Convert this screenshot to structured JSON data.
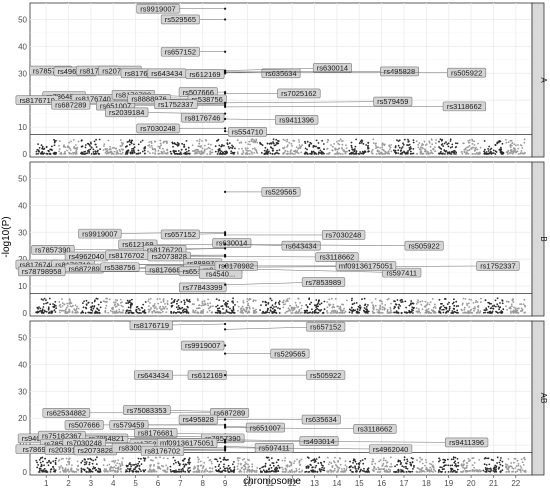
{
  "chart_data": {
    "type": "scatter",
    "subtype": "manhattan",
    "xlabel": "chromosome",
    "ylabel": "-log10(P)",
    "x_categories": [
      "1",
      "2",
      "3",
      "4",
      "5",
      "6",
      "7",
      "8",
      "9",
      "10",
      "11",
      "12",
      "13",
      "14",
      "15",
      "16",
      "17",
      "18",
      "19",
      "20",
      "21",
      "22"
    ],
    "ylim": [
      0,
      55
    ],
    "y_ticks": [
      0,
      10,
      20,
      30,
      40,
      50
    ],
    "point_colors": [
      "#2b2b2b",
      "#9a9a9a"
    ],
    "significance_threshold": 7.3,
    "panels": [
      {
        "strip": "A",
        "snps": [
          {
            "label": "rs9919007",
            "chr": 9,
            "y": 54.0,
            "lx": 6,
            "ly": 54.0
          },
          {
            "label": "rs529565",
            "chr": 9,
            "y": 50.0,
            "lx": 7,
            "ly": 50.0
          },
          {
            "label": "rs657152",
            "chr": 9,
            "y": 38.0,
            "lx": 7,
            "ly": 38.0
          },
          {
            "label": "rs7857390",
            "chr": 9,
            "y": 31.0,
            "lx": 1.2,
            "ly": 31.0
          },
          {
            "label": "rs4962040",
            "chr": 9,
            "y": 30.5,
            "lx": 2.3,
            "ly": 30.7
          },
          {
            "label": "rs8176702",
            "chr": 9,
            "y": 30.5,
            "lx": 3.3,
            "ly": 31.0
          },
          {
            "label": "rs2073828",
            "chr": 9,
            "y": 30.2,
            "lx": 4.3,
            "ly": 31.0
          },
          {
            "label": "rs8176681",
            "chr": 9,
            "y": 30.0,
            "lx": 5.3,
            "ly": 30.0
          },
          {
            "label": "rs643434",
            "chr": 9,
            "y": 30.0,
            "lx": 6.4,
            "ly": 30.0
          },
          {
            "label": "rs612169",
            "chr": 9,
            "y": 30.0,
            "lx": 8.1,
            "ly": 29.7
          },
          {
            "label": "rs635634",
            "chr": 9,
            "y": 30.5,
            "lx": 11.5,
            "ly": 30.0
          },
          {
            "label": "rs630014",
            "chr": 9,
            "y": 31.0,
            "lx": 13.8,
            "ly": 32.0
          },
          {
            "label": "rs495828",
            "chr": 9,
            "y": 30.5,
            "lx": 16.8,
            "ly": 30.7
          },
          {
            "label": "rs505922",
            "chr": 9,
            "y": 30.2,
            "lx": 19.8,
            "ly": 30.2
          },
          {
            "label": "rs7864821",
            "chr": 9,
            "y": 20.5,
            "lx": 1.8,
            "ly": 21.5
          },
          {
            "label": "rs8176719",
            "chr": 9,
            "y": 20.0,
            "lx": 0.6,
            "ly": 20.0
          },
          {
            "label": "rs8176740",
            "chr": 9,
            "y": 20.0,
            "lx": 3.1,
            "ly": 20.5
          },
          {
            "label": "rs8176720",
            "chr": 9,
            "y": 21.0,
            "lx": 4.9,
            "ly": 22.0
          },
          {
            "label": "rs507666",
            "chr": 9,
            "y": 23.0,
            "lx": 7.8,
            "ly": 23.0
          },
          {
            "label": "rs7025162",
            "chr": 9,
            "y": 22.5,
            "lx": 12.3,
            "ly": 22.5
          },
          {
            "label": "rs687289",
            "chr": 9,
            "y": 18.5,
            "lx": 2.1,
            "ly": 18.3
          },
          {
            "label": "rs651007",
            "chr": 9,
            "y": 18.0,
            "lx": 4.1,
            "ly": 18.0
          },
          {
            "label": "rs8888976",
            "chr": 9,
            "y": 20.0,
            "lx": 5.6,
            "ly": 20.5
          },
          {
            "label": "rs538756",
            "chr": 9,
            "y": 20.5,
            "lx": 8.2,
            "ly": 20.3
          },
          {
            "label": "rs1752337",
            "chr": 9,
            "y": 19.0,
            "lx": 6.8,
            "ly": 18.5
          },
          {
            "label": "rs579459",
            "chr": 9,
            "y": 19.0,
            "lx": 16.5,
            "ly": 19.5
          },
          {
            "label": "rs3118662",
            "chr": 9,
            "y": 17.5,
            "lx": 19.7,
            "ly": 17.7
          },
          {
            "label": "rs2039184",
            "chr": 9,
            "y": 15.0,
            "lx": 4.6,
            "ly": 15.5
          },
          {
            "label": "rs8176746",
            "chr": 9,
            "y": 13.0,
            "lx": 8.0,
            "ly": 13.5
          },
          {
            "label": "rs9411396",
            "chr": 9,
            "y": 13.0,
            "lx": 12.2,
            "ly": 12.7
          },
          {
            "label": "rs7030248",
            "chr": 9,
            "y": 9.5,
            "lx": 6.0,
            "ly": 9.5
          },
          {
            "label": "rs554710",
            "chr": 9,
            "y": 8.5,
            "lx": 10.0,
            "ly": 8.2
          }
        ]
      },
      {
        "strip": "B",
        "snps": [
          {
            "label": "rs529565",
            "chr": 9,
            "y": 45.0,
            "lx": 11.5,
            "ly": 45.0
          },
          {
            "label": "rs9919007",
            "chr": 9,
            "y": 30.0,
            "lx": 3.4,
            "ly": 29.5
          },
          {
            "label": "rs657152",
            "chr": 9,
            "y": 29.5,
            "lx": 7.0,
            "ly": 29.2
          },
          {
            "label": "rs7030248",
            "chr": 9,
            "y": 29.0,
            "lx": 14.3,
            "ly": 29.0
          },
          {
            "label": "rs612169",
            "chr": 9,
            "y": 25.5,
            "lx": 5.1,
            "ly": 25.5
          },
          {
            "label": "rs630014",
            "chr": 9,
            "y": 26.0,
            "lx": 9.3,
            "ly": 26.0
          },
          {
            "label": "rs643434",
            "chr": 9,
            "y": 25.5,
            "lx": 12.4,
            "ly": 25.0
          },
          {
            "label": "rs505922",
            "chr": 9,
            "y": 25.5,
            "lx": 17.9,
            "ly": 25.0
          },
          {
            "label": "rs7857390",
            "chr": 9,
            "y": 24.0,
            "lx": 1.3,
            "ly": 23.5
          },
          {
            "label": "rs8176720",
            "chr": 9,
            "y": 24.0,
            "lx": 6.3,
            "ly": 23.5
          },
          {
            "label": "rs4962040",
            "chr": 9,
            "y": 21.5,
            "lx": 2.8,
            "ly": 21.0
          },
          {
            "label": "rs8176702",
            "chr": 9,
            "y": 21.5,
            "lx": 4.6,
            "ly": 21.5
          },
          {
            "label": "rs2073828",
            "chr": 9,
            "y": 21.0,
            "lx": 6.5,
            "ly": 21.0
          },
          {
            "label": "rs3118662",
            "chr": 9,
            "y": 21.0,
            "lx": 14.0,
            "ly": 20.8
          },
          {
            "label": "rs8176740",
            "chr": 9,
            "y": 18.0,
            "lx": 0.6,
            "ly": 18.0
          },
          {
            "label": "rs8176719",
            "chr": 9,
            "y": 18.0,
            "lx": 2.2,
            "ly": 18.0
          },
          {
            "label": "rs888976",
            "chr": 9,
            "y": 18.5,
            "lx": 8.0,
            "ly": 18.5
          },
          {
            "label": "rs687289",
            "chr": 9,
            "y": 16.5,
            "lx": 2.7,
            "ly": 16.5
          },
          {
            "label": "rs538756",
            "chr": 9,
            "y": 16.5,
            "lx": 4.3,
            "ly": 17.0
          },
          {
            "label": "rs8176681",
            "chr": 9,
            "y": 16.5,
            "lx": 6.4,
            "ly": 16.0
          },
          {
            "label": "rs507666",
            "chr": 9,
            "y": 16.0,
            "lx": 8.0,
            "ly": 16.5
          },
          {
            "label": "rs651007",
            "chr": 9,
            "y": 16.0,
            "lx": 7.8,
            "ly": 15.5
          },
          {
            "label": "rs9411396",
            "chr": 9,
            "y": 16.0,
            "lx": 8.8,
            "ly": 16.0
          },
          {
            "label": "rs78798958",
            "chr": 9,
            "y": 15.5,
            "lx": 0.8,
            "ly": 15.5
          },
          {
            "label": "rs1752337",
            "chr": 9,
            "y": 17.0,
            "lx": 21.2,
            "ly": 17.5
          },
          {
            "label": "rs597411",
            "chr": 9,
            "y": 16.5,
            "lx": 16.9,
            "ly": 15.0
          },
          {
            "label": "rs4540...",
            "chr": 9,
            "y": 15.5,
            "lx": 8.8,
            "ly": 14.5
          },
          {
            "label": "rs77843399",
            "chr": 9,
            "y": 10.5,
            "lx": 8.0,
            "ly": 9.5
          },
          {
            "label": "rs7853989",
            "chr": 9,
            "y": 10.5,
            "lx": 13.4,
            "ly": 11.5
          },
          {
            "label": "rs8178982",
            "chr": 9,
            "y": 18.0,
            "lx": 9.5,
            "ly": 17.5
          },
          {
            "label": "mf09136175051",
            "chr": 9,
            "y": 17.5,
            "lx": 15.3,
            "ly": 17.5
          }
        ]
      },
      {
        "strip": "AB",
        "snps": [
          {
            "label": "rs8176719",
            "chr": 9,
            "y": 55.0,
            "lx": 5.7,
            "ly": 54.5
          },
          {
            "label": "rs657152",
            "chr": 9,
            "y": 53.0,
            "lx": 13.5,
            "ly": 54.0
          },
          {
            "label": "rs9919007",
            "chr": 9,
            "y": 47.0,
            "lx": 8.0,
            "ly": 47.0
          },
          {
            "label": "rs529565",
            "chr": 9,
            "y": 44.0,
            "lx": 11.9,
            "ly": 44.0
          },
          {
            "label": "rs643434",
            "chr": 9,
            "y": 36.0,
            "lx": 5.8,
            "ly": 36.0
          },
          {
            "label": "rs612169",
            "chr": 9,
            "y": 36.0,
            "lx": 8.2,
            "ly": 36.0
          },
          {
            "label": "rs505922",
            "chr": 9,
            "y": 36.0,
            "lx": 13.5,
            "ly": 36.0
          },
          {
            "label": "rs62534882",
            "chr": 9,
            "y": 22.0,
            "lx": 1.9,
            "ly": 22.0
          },
          {
            "label": "rs75083353",
            "chr": 9,
            "y": 22.5,
            "lx": 5.5,
            "ly": 23.0
          },
          {
            "label": "rs687289",
            "chr": 9,
            "y": 22.0,
            "lx": 9.2,
            "ly": 22.0
          },
          {
            "label": "rs495828",
            "chr": 9,
            "y": 19.5,
            "lx": 7.8,
            "ly": 19.5
          },
          {
            "label": "rs635634",
            "chr": 9,
            "y": 19.5,
            "lx": 13.3,
            "ly": 19.5
          },
          {
            "label": "rs507666",
            "chr": 9,
            "y": 17.5,
            "lx": 2.7,
            "ly": 17.5
          },
          {
            "label": "rs579459",
            "chr": 9,
            "y": 17.5,
            "lx": 4.7,
            "ly": 17.5
          },
          {
            "label": "rs651007",
            "chr": 9,
            "y": 17.0,
            "lx": 10.8,
            "ly": 16.5
          },
          {
            "label": "rs3118662",
            "chr": 9,
            "y": 16.5,
            "lx": 15.7,
            "ly": 16.0
          },
          {
            "label": "rs9407298",
            "chr": 9,
            "y": 12.5,
            "lx": 0.7,
            "ly": 12.5
          },
          {
            "label": "rs7864821",
            "chr": 9,
            "y": 12.5,
            "lx": 3.7,
            "ly": 12.5
          },
          {
            "label": "rs8176681",
            "chr": 9,
            "y": 14.0,
            "lx": 5.9,
            "ly": 14.5
          },
          {
            "label": "rs75182367",
            "chr": 9,
            "y": 13.0,
            "lx": 1.7,
            "ly": 13.5
          },
          {
            "label": "rs7857390",
            "chr": 9,
            "y": 12.0,
            "lx": 8.9,
            "ly": 12.5
          },
          {
            "label": "rs493014",
            "chr": 9,
            "y": 12.0,
            "lx": 13.2,
            "ly": 11.5
          },
          {
            "label": "rs9411396",
            "chr": 9,
            "y": 11.5,
            "lx": 19.8,
            "ly": 11.0
          },
          {
            "label": "rs7853989",
            "chr": 9,
            "y": 11.0,
            "lx": 1.7,
            "ly": 10.5
          },
          {
            "label": "rs7030248",
            "chr": 9,
            "y": 11.0,
            "lx": 2.7,
            "ly": 10.8
          },
          {
            "label": "rs1752337",
            "chr": 9,
            "y": 11.0,
            "lx": 5.7,
            "ly": 10.5
          },
          {
            "label": "mf09136175051",
            "chr": 9,
            "y": 11.0,
            "lx": 7.3,
            "ly": 10.8
          },
          {
            "label": "rs597411",
            "chr": 9,
            "y": 9.5,
            "lx": 11.2,
            "ly": 9.0
          },
          {
            "label": "rs4962040",
            "chr": 9,
            "y": 9.0,
            "lx": 16.4,
            "ly": 8.5
          },
          {
            "label": "rs7869...",
            "chr": 9,
            "y": 8.5,
            "lx": 0.6,
            "ly": 8.5
          },
          {
            "label": "rs2039184",
            "chr": 9,
            "y": 8.5,
            "lx": 1.9,
            "ly": 8.2
          },
          {
            "label": "rs2073828",
            "chr": 9,
            "y": 8.5,
            "lx": 3.2,
            "ly": 8.0
          },
          {
            "label": "rs8300...",
            "chr": 9,
            "y": 9.0,
            "lx": 4.9,
            "ly": 9.0
          },
          {
            "label": "rs8176702",
            "chr": 9,
            "y": 8.0,
            "lx": 6.2,
            "ly": 7.8
          }
        ]
      }
    ]
  }
}
